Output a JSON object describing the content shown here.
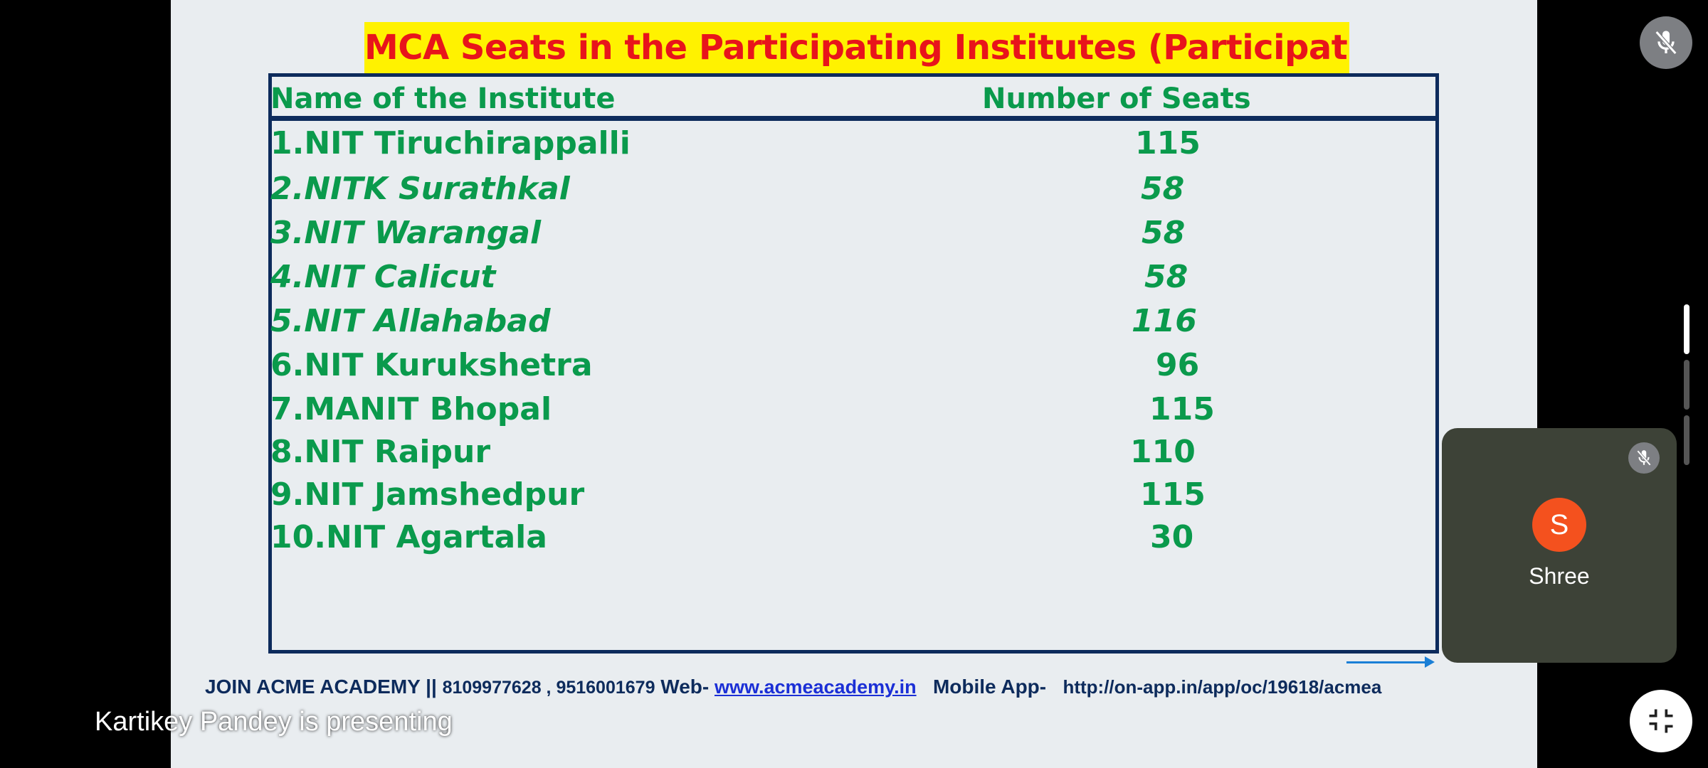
{
  "slide": {
    "title": "MCA Seats in the Participating Institutes (Participating NITs)",
    "columns": {
      "name": "Name of the Institute",
      "seats": "Number of Seats"
    },
    "rows": [
      {
        "institute": "1.NIT Tiruchirappalli",
        "seats": "115",
        "italic": false
      },
      {
        "institute": "2.NITK Surathkal",
        "seats": "58",
        "italic": true
      },
      {
        "institute": "3.NIT Warangal",
        "seats": "58",
        "italic": true
      },
      {
        "institute": "4.NIT Calicut",
        "seats": "58",
        "italic": true
      },
      {
        "institute": "5.NIT Allahabad",
        "seats": "116",
        "italic": true
      },
      {
        "institute": "6.NIT Kurukshetra",
        "seats": "96",
        "italic": false
      },
      {
        "institute": "7.MANIT Bhopal",
        "seats": "115",
        "italic": false
      },
      {
        "institute": "8.NIT Raipur",
        "seats": "110",
        "italic": false
      },
      {
        "institute": "9.NIT Jamshedpur",
        "seats": "115",
        "italic": false
      },
      {
        "institute": "10.NIT Agartala",
        "seats": "30",
        "italic": false
      }
    ],
    "footer": {
      "join": "JOIN ACME ACADEMY ||",
      "phones": "8109977628 , 9516001679",
      "web_label": "Web-",
      "web_link": "www.acmeacademy.in",
      "app_label": "Mobile App-",
      "app_url": "http://on-app.in/app/oc/19618/acmea"
    }
  },
  "meeting": {
    "presenting_text": "Kartikey Pandey is presenting",
    "participant": {
      "initial": "S",
      "name": "Shree",
      "avatar_color": "#f4511e"
    },
    "icons": {
      "top_mic": "mic-off-icon",
      "tile_mic": "mic-off-icon",
      "exit": "exit-fullscreen-icon"
    }
  }
}
